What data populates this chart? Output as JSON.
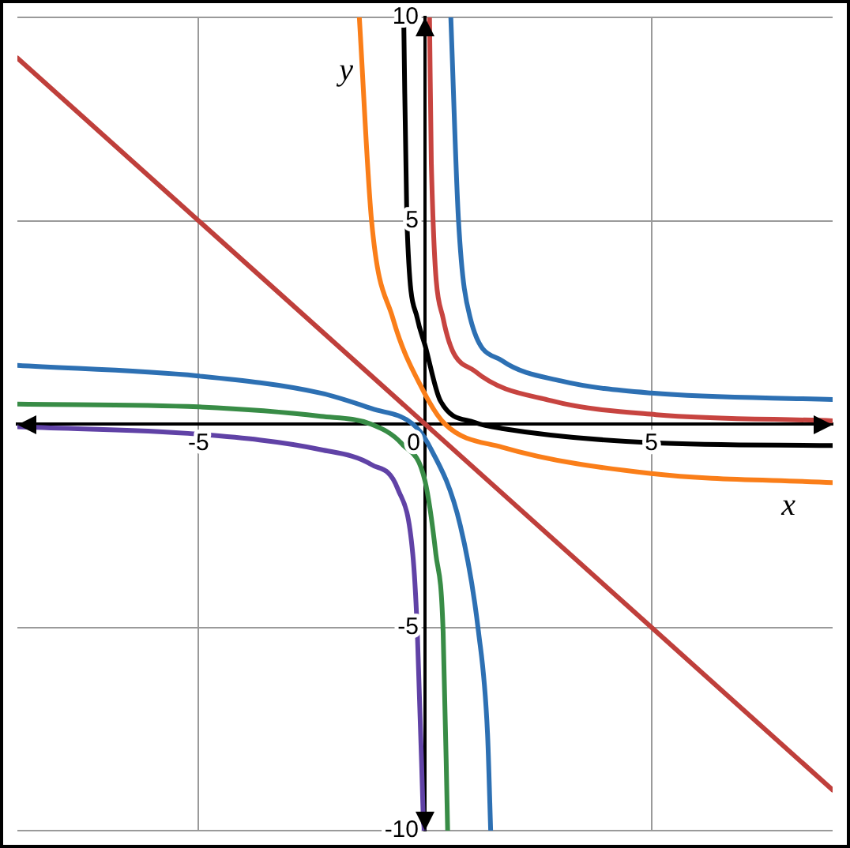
{
  "chart_data": {
    "type": "line",
    "xlabel": "x",
    "ylabel": "y",
    "xlim": [
      -9,
      9
    ],
    "ylim": [
      -10,
      10
    ],
    "xticks": [
      -5,
      0,
      5
    ],
    "yticks": [
      -10,
      -5,
      5,
      10
    ],
    "grid": true,
    "legend": false,
    "marker": "none",
    "line_style": "solid",
    "series": [
      {
        "color": "#bf3f3b",
        "x": [
          -9,
          9
        ],
        "values": [
          9,
          -9
        ]
      },
      {
        "color": "#c74440",
        "x": [
          0.1,
          0.14,
          0.4,
          1.1,
          2.8,
          5.1,
          9
        ],
        "values": [
          10,
          6.4,
          2.6,
          1.3,
          0.57,
          0.23,
          0.08
        ]
      },
      {
        "color": "#6042a6",
        "x": [
          -9,
          -5,
          -2.3,
          -1.18,
          -0.6,
          -0.27,
          -0.17,
          -0.03
        ],
        "values": [
          -0.07,
          -0.25,
          -0.63,
          -1.0,
          -1.6,
          -3.2,
          -5.1,
          -10
        ]
      },
      {
        "color": "#2d70b3",
        "x": [
          0.57,
          0.74,
          1.0,
          1.7,
          3.0,
          5,
          9
        ],
        "values": [
          10,
          5,
          2.6,
          1.56,
          1.06,
          0.76,
          0.6
        ]
      },
      {
        "color": "#2d70b3",
        "x": [
          -9,
          -5,
          -2.3,
          -1.18,
          -0.27,
          0.07,
          0.78,
          1.18,
          1.38,
          1.45
        ],
        "values": [
          1.44,
          1.18,
          0.76,
          0.38,
          0,
          -0.49,
          -2.5,
          -5.1,
          -7.6,
          -10
        ]
      },
      {
        "color": "#388c46",
        "x": [
          -9,
          -5,
          -2.3,
          -1.2,
          -0.5,
          0,
          0.24,
          0.4,
          0.5
        ],
        "values": [
          0.49,
          0.42,
          0.19,
          0,
          -0.5,
          -1.4,
          -3.2,
          -5.1,
          -10
        ]
      },
      {
        "color": "#fa7e19",
        "x": [
          -1.45,
          -1.18,
          -0.71,
          -0.03,
          0.44,
          1.7,
          5,
          9
        ],
        "values": [
          10,
          5,
          2.6,
          0.8,
          0,
          -0.57,
          -1.22,
          -1.44
        ]
      },
      {
        "color": "#000000",
        "x": [
          -0.47,
          -0.4,
          -0.17,
          0,
          0.34,
          1.1,
          1.7,
          5,
          9
        ],
        "values": [
          10,
          5,
          2.6,
          1.94,
          0.57,
          0.04,
          -0.11,
          -0.46,
          -0.53
        ]
      }
    ]
  }
}
